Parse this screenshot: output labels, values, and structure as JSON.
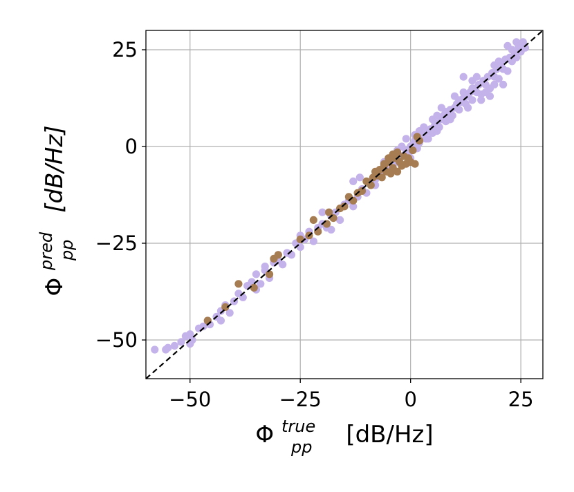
{
  "chart_data": {
    "type": "scatter",
    "xlabel": {
      "main": "Φ",
      "sup": "true",
      "sub": "pp",
      "units": "[dB/Hz]"
    },
    "ylabel": {
      "main": "Φ",
      "sup": "pred",
      "sub": "pp",
      "units": "[dB/Hz]"
    },
    "xlim": [
      -60,
      30
    ],
    "ylim": [
      -60,
      30
    ],
    "xticks": [
      -50,
      -25,
      0,
      25
    ],
    "yticks": [
      -50,
      -25,
      0,
      25
    ],
    "xtick_labels": [
      "−50",
      "−25",
      "0",
      "25"
    ],
    "ytick_labels": [
      "−50",
      "−25",
      "0",
      "25"
    ],
    "grid": true,
    "reference_line": {
      "style": "dashed",
      "color": "#000000",
      "from": [
        -60,
        -60
      ],
      "to": [
        30,
        30
      ]
    },
    "series": [
      {
        "color": "#c4b2ea",
        "points": [
          [
            -58,
            -52.5
          ],
          [
            -55.5,
            -52.5
          ],
          [
            -55,
            -52
          ],
          [
            -53.5,
            -51.5
          ],
          [
            -52,
            -50.5
          ],
          [
            -51,
            -49
          ],
          [
            -50,
            -48.5
          ],
          [
            -49.5,
            -50
          ],
          [
            -48,
            -47
          ],
          [
            -47,
            -46.5
          ],
          [
            -46,
            -45
          ],
          [
            -45.5,
            -46
          ],
          [
            -44,
            -44
          ],
          [
            -43,
            -42.5
          ],
          [
            -42,
            -41
          ],
          [
            -41,
            -43
          ],
          [
            -40,
            -40
          ],
          [
            -39,
            -38
          ],
          [
            -38,
            -39
          ],
          [
            -37,
            -36
          ],
          [
            -36,
            -35
          ],
          [
            -35,
            -33
          ],
          [
            -34,
            -35.5
          ],
          [
            -33,
            -32
          ],
          [
            -32,
            -34
          ],
          [
            -31,
            -30
          ],
          [
            -30,
            -29.5
          ],
          [
            -29,
            -30.5
          ],
          [
            -28,
            -27.5
          ],
          [
            -27,
            -28
          ],
          [
            -26,
            -25
          ],
          [
            -25,
            -26
          ],
          [
            -24,
            -24
          ],
          [
            -23,
            -22
          ],
          [
            -22,
            -24.5
          ],
          [
            -21,
            -21
          ],
          [
            -20,
            -20
          ],
          [
            -19,
            -21
          ],
          [
            -18,
            -18
          ],
          [
            -17,
            -17
          ],
          [
            -16,
            -19
          ],
          [
            -15,
            -15
          ],
          [
            -14,
            -14
          ],
          [
            -13,
            -15.5
          ],
          [
            -12,
            -13
          ],
          [
            -11,
            -11
          ],
          [
            -10,
            -12
          ],
          [
            -9,
            -9
          ],
          [
            -8,
            -8.5
          ],
          [
            -7,
            -7
          ],
          [
            -6,
            -6.5
          ],
          [
            -5,
            -5
          ],
          [
            -4,
            -3.5
          ],
          [
            -3,
            -4
          ],
          [
            -2,
            -2.5
          ],
          [
            -1,
            -1
          ],
          [
            -0.5,
            -2
          ],
          [
            0,
            0
          ],
          [
            0.5,
            0.5
          ],
          [
            1,
            1.5
          ],
          [
            1.5,
            -0.5
          ],
          [
            2,
            1
          ],
          [
            2.5,
            2
          ],
          [
            3,
            3
          ],
          [
            3.5,
            2
          ],
          [
            4,
            4
          ],
          [
            4.5,
            4.5
          ],
          [
            5,
            3.5
          ],
          [
            5.5,
            5.5
          ],
          [
            6,
            6
          ],
          [
            6.5,
            5
          ],
          [
            7,
            7
          ],
          [
            7.5,
            8
          ],
          [
            8,
            6.5
          ],
          [
            8.5,
            8.5
          ],
          [
            9,
            9.5
          ],
          [
            9.5,
            8
          ],
          [
            10,
            10
          ],
          [
            10.5,
            11
          ],
          [
            11,
            9.5
          ],
          [
            11.5,
            11.5
          ],
          [
            12,
            12.5
          ],
          [
            12.5,
            11
          ],
          [
            13,
            13
          ],
          [
            13.5,
            14
          ],
          [
            14,
            12
          ],
          [
            14.5,
            15
          ],
          [
            15,
            14
          ],
          [
            15.5,
            16
          ],
          [
            16,
            13.5
          ],
          [
            16.5,
            17
          ],
          [
            17,
            16
          ],
          [
            17.5,
            18
          ],
          [
            18,
            15
          ],
          [
            18.5,
            19
          ],
          [
            19,
            18
          ],
          [
            19.5,
            20
          ],
          [
            20,
            17.5
          ],
          [
            20.5,
            21
          ],
          [
            21,
            20
          ],
          [
            21.5,
            22.5
          ],
          [
            22,
            19.5
          ],
          [
            22.5,
            23
          ],
          [
            23,
            22
          ],
          [
            23.5,
            24.5
          ],
          [
            24,
            23
          ],
          [
            24.5,
            26
          ],
          [
            25,
            24.5
          ],
          [
            25.5,
            27
          ],
          [
            26,
            25.5
          ],
          [
            24,
            27
          ],
          [
            23,
            25
          ],
          [
            22,
            26
          ],
          [
            12,
            18
          ],
          [
            14,
            17
          ],
          [
            13,
            10
          ],
          [
            16,
            12
          ],
          [
            18,
            13
          ],
          [
            21,
            16
          ],
          [
            19,
            21
          ],
          [
            10,
            13
          ],
          [
            7,
            10
          ],
          [
            5,
            7
          ],
          [
            3,
            5
          ],
          [
            -1,
            2
          ],
          [
            0,
            -3
          ],
          [
            -3,
            -1
          ],
          [
            -20,
            -17
          ],
          [
            -25,
            -23
          ],
          [
            -33,
            -31
          ],
          [
            -43,
            -45
          ],
          [
            -50,
            -51
          ],
          [
            -35,
            -37
          ],
          [
            -13,
            -9
          ],
          [
            -8,
            -10
          ],
          [
            1,
            3
          ],
          [
            4,
            2
          ],
          [
            6,
            8
          ],
          [
            9,
            7
          ],
          [
            11,
            12
          ],
          [
            15,
            18
          ],
          [
            17,
            14
          ],
          [
            20,
            22
          ],
          [
            19,
            16
          ],
          [
            14,
            15
          ],
          [
            12,
            14
          ],
          [
            8,
            9
          ],
          [
            6,
            4
          ],
          [
            2,
            4
          ],
          [
            -2,
            0
          ],
          [
            -30,
            -28
          ],
          [
            -18,
            -21.5
          ],
          [
            -11.5,
            -8
          ],
          [
            -6,
            -4
          ]
        ]
      },
      {
        "color": "#a67c52",
        "points": [
          [
            -46,
            -45
          ],
          [
            -42,
            -41.5
          ],
          [
            -39,
            -35.5
          ],
          [
            -35.5,
            -36.5
          ],
          [
            -32,
            -33
          ],
          [
            -31,
            -29
          ],
          [
            -30,
            -28
          ],
          [
            -25,
            -24
          ],
          [
            -23,
            -23
          ],
          [
            -22,
            -19
          ],
          [
            -21,
            -22
          ],
          [
            -19,
            -20
          ],
          [
            -18.5,
            -17
          ],
          [
            -17.5,
            -18.5
          ],
          [
            -16,
            -16
          ],
          [
            -15,
            -15.5
          ],
          [
            -14,
            -13
          ],
          [
            -13,
            -14
          ],
          [
            -12,
            -12
          ],
          [
            -11,
            -11.5
          ],
          [
            -10,
            -9
          ],
          [
            -9,
            -10
          ],
          [
            -8.5,
            -8
          ],
          [
            -8,
            -6.5
          ],
          [
            -7.5,
            -7.5
          ],
          [
            -7,
            -6
          ],
          [
            -6.5,
            -8
          ],
          [
            -6,
            -5
          ],
          [
            -5.5,
            -6.5
          ],
          [
            -5,
            -4
          ],
          [
            -4.5,
            -7
          ],
          [
            -4,
            -5.5
          ],
          [
            -3.5,
            -3
          ],
          [
            -3,
            -6.5
          ],
          [
            -2.5,
            -4
          ],
          [
            -2,
            -5
          ],
          [
            -1.5,
            -2.5
          ],
          [
            -1,
            -4.5
          ],
          [
            -0.5,
            -3
          ],
          [
            0,
            -4
          ],
          [
            0.5,
            -1
          ],
          [
            1,
            -4.5
          ],
          [
            1.5,
            2.5
          ],
          [
            2,
            1.5
          ],
          [
            -4,
            -2
          ],
          [
            -5,
            -3
          ],
          [
            -6,
            -4.5
          ],
          [
            -3,
            -1.5
          ]
        ]
      }
    ]
  }
}
